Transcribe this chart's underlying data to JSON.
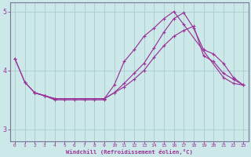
{
  "background_color": "#cce8e8",
  "grid_color": "#aacccc",
  "line_color": "#993399",
  "xlabel": "Windchill (Refroidissement éolien,°C)",
  "xlim": [
    -0.5,
    23.5
  ],
  "ylim": [
    2.8,
    5.15
  ],
  "yticks": [
    3,
    4,
    5
  ],
  "xticks": [
    0,
    1,
    2,
    3,
    4,
    5,
    6,
    7,
    8,
    9,
    10,
    11,
    12,
    13,
    14,
    15,
    16,
    17,
    18,
    19,
    20,
    21,
    22,
    23
  ],
  "lines": [
    {
      "x": [
        0,
        1,
        2,
        3,
        4,
        9,
        10,
        11,
        12,
        13,
        14,
        15,
        16,
        17,
        21,
        22,
        23
      ],
      "y": [
        4.2,
        3.8,
        3.62,
        3.57,
        3.52,
        3.52,
        3.75,
        4.15,
        4.35,
        4.58,
        4.72,
        4.88,
        5.0,
        4.78,
        3.88,
        3.78,
        3.75
      ]
    },
    {
      "x": [
        2,
        3,
        4,
        5,
        6,
        7,
        8,
        9
      ],
      "y": [
        3.62,
        3.57,
        3.5,
        3.5,
        3.5,
        3.5,
        3.5,
        3.5
      ]
    },
    {
      "x": [
        0,
        1,
        2,
        3,
        4,
        9,
        10,
        11,
        12,
        13,
        14,
        15,
        16,
        17,
        18,
        19,
        20,
        21,
        22,
        23
      ],
      "y": [
        4.2,
        3.8,
        3.62,
        3.57,
        3.52,
        3.52,
        3.62,
        3.78,
        3.95,
        4.12,
        4.38,
        4.65,
        4.88,
        4.98,
        4.72,
        4.35,
        4.28,
        4.12,
        3.88,
        3.75
      ]
    },
    {
      "x": [
        2,
        3,
        4,
        9,
        10,
        11,
        12,
        13,
        14,
        15,
        16,
        17,
        18,
        19,
        20,
        21,
        22,
        23
      ],
      "y": [
        3.62,
        3.57,
        3.52,
        3.52,
        3.62,
        3.72,
        3.85,
        4.0,
        4.22,
        4.42,
        4.58,
        4.68,
        4.75,
        4.25,
        4.15,
        3.95,
        3.85,
        3.75
      ]
    }
  ]
}
